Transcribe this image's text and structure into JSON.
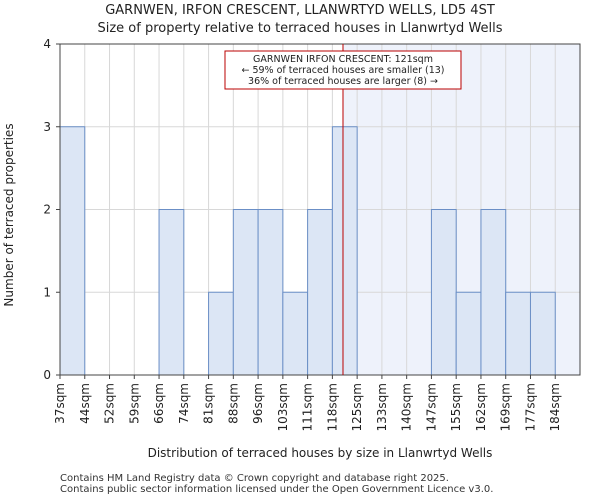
{
  "chart_data": {
    "type": "bar",
    "title": "GARNWEN, IRFON CRESCENT, LLANWRTYD WELLS, LD5 4ST",
    "subtitle": "Size of property relative to terraced houses in Llanwrtyd Wells",
    "xlabel": "Distribution of terraced houses by size in Llanwrtyd Wells",
    "ylabel": "Number of terraced properties",
    "categories": [
      "37sqm",
      "44sqm",
      "52sqm",
      "59sqm",
      "66sqm",
      "74sqm",
      "81sqm",
      "88sqm",
      "96sqm",
      "103sqm",
      "111sqm",
      "118sqm",
      "125sqm",
      "133sqm",
      "140sqm",
      "147sqm",
      "155sqm",
      "162sqm",
      "169sqm",
      "177sqm",
      "184sqm"
    ],
    "values": [
      3,
      0,
      0,
      0,
      2,
      0,
      1,
      2,
      2,
      1,
      2,
      3,
      0,
      0,
      0,
      2,
      1,
      2,
      1,
      1,
      0
    ],
    "ylim": [
      0,
      4
    ],
    "yticks": [
      0,
      1,
      2,
      3,
      4
    ],
    "grid": true,
    "marker": {
      "value_sqm": 121,
      "line1": "GARNWEN IRFON CRESCENT: 121sqm",
      "line2": "← 59% of terraced houses are smaller (13)",
      "line3": "36% of terraced houses are larger (8) →",
      "color": "#bb0000"
    },
    "bar_fill": "#dce6f5",
    "bar_stroke": "#6b8fc6",
    "highlight_fill": "#eef2fb"
  },
  "footer": {
    "line1": "Contains HM Land Registry data © Crown copyright and database right 2025.",
    "line2": "Contains public sector information licensed under the Open Government Licence v3.0."
  }
}
